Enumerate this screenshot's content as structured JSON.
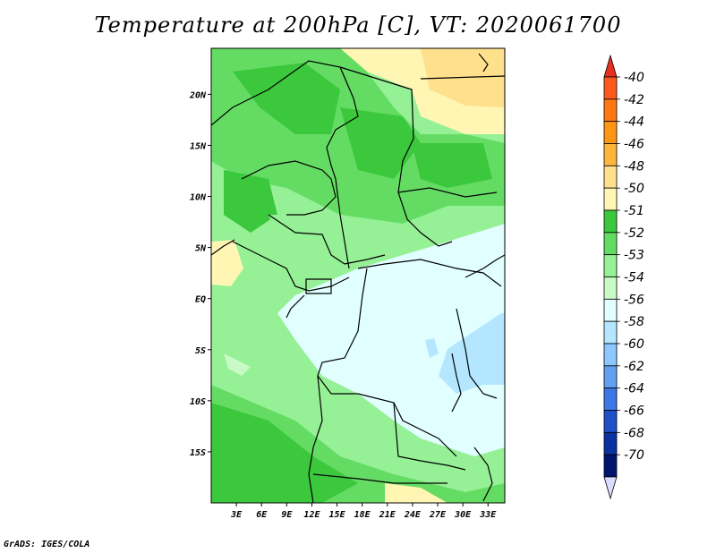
{
  "title": "Temperature at 200hPa [C], VT: 2020061700",
  "credit": "GrADS: IGES/COLA",
  "map": {
    "lon_labels": [
      "3E",
      "6E",
      "9E",
      "12E",
      "15E",
      "18E",
      "21E",
      "24E",
      "27E",
      "30E",
      "33E"
    ],
    "lat_labels": [
      "20N",
      "15N",
      "10N",
      "5N",
      "EQ",
      "5S",
      "10S",
      "15S"
    ],
    "lon_range": [
      0,
      35
    ],
    "lat_range": [
      -20,
      24.5
    ]
  },
  "colorbar": {
    "labels": [
      "-40",
      "-42",
      "-44",
      "-46",
      "-48",
      "-50",
      "-51",
      "-52",
      "-53",
      "-54",
      "-56",
      "-58",
      "-60",
      "-62",
      "-64",
      "-66",
      "-68",
      "-70"
    ],
    "colors": [
      "#e6301e",
      "#ff5a1e",
      "#ff7814",
      "#ff9614",
      "#ffb43c",
      "#ffe08c",
      "#fff6b4",
      "#3cc83c",
      "#64dc64",
      "#96f096",
      "#c8fac8",
      "#e1ffff",
      "#b4e6ff",
      "#8cc8ff",
      "#64a0f0",
      "#3c78e6",
      "#1e50c8",
      "#0a32a0",
      "#00146e",
      "#dcdcff"
    ]
  }
}
